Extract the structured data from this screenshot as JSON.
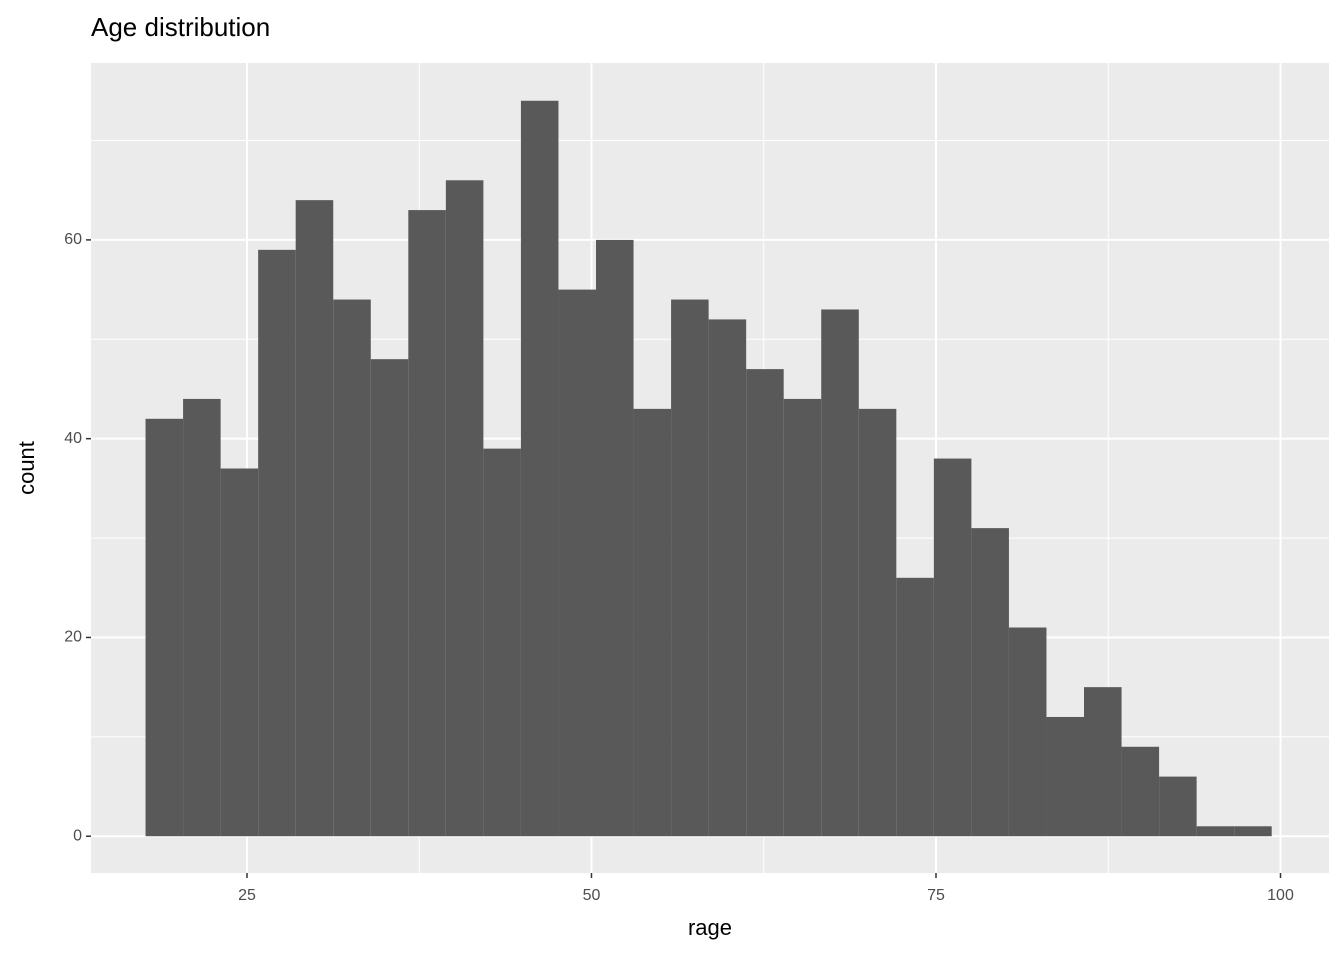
{
  "chart_data": {
    "type": "histogram",
    "title": "Age distribution",
    "x_label": "rage",
    "y_label": "count",
    "bins": [
      17.638,
      20.362,
      23.086,
      25.81,
      28.534,
      31.259,
      33.983,
      36.707,
      39.431,
      42.155,
      44.879,
      47.603,
      50.328,
      53.052,
      55.776,
      58.5,
      61.224,
      63.948,
      66.672,
      69.397,
      72.121,
      74.845,
      77.569,
      80.293,
      83.017,
      85.741,
      88.466,
      91.19,
      93.914,
      96.638,
      99.362
    ],
    "values": [
      42,
      44,
      37,
      59,
      64,
      54,
      48,
      63,
      66,
      39,
      74,
      55,
      60,
      43,
      54,
      52,
      47,
      44,
      53,
      43,
      26,
      38,
      31,
      21,
      12,
      15,
      9,
      6,
      1,
      1
    ],
    "color": "#595959",
    "xlim": [
      13.68,
      103.52
    ],
    "xticks": [
      25,
      50,
      75,
      100
    ],
    "minor_xticks": [
      37.5,
      62.5,
      87.5
    ],
    "ylim": [
      -3.7,
      77.8
    ],
    "yticks": [
      0,
      20,
      40,
      60
    ],
    "minor_yticks": [
      10,
      30,
      50,
      70
    ],
    "grid": true
  }
}
